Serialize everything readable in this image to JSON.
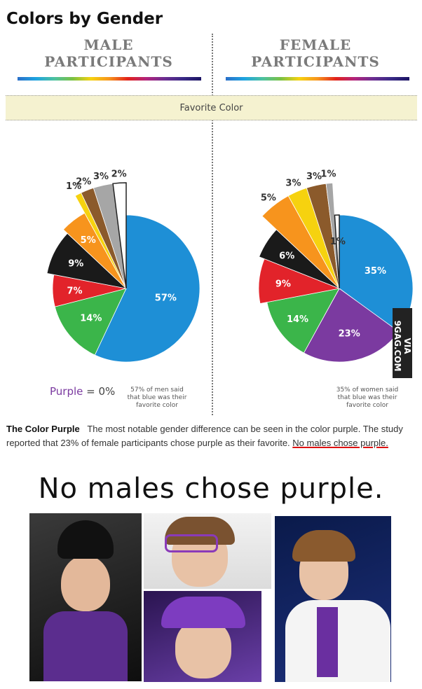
{
  "title": "Colors by Gender",
  "male_heading": [
    "MALE",
    "PARTICIPANTS"
  ],
  "female_heading": [
    "FEMALE",
    "PARTICIPANTS"
  ],
  "favorite_color_label": "Favorite Color",
  "purple_zero": {
    "word": "Purple",
    "rest": " = 0%"
  },
  "male_note": [
    "57% of men said",
    "that blue was their",
    "favorite color"
  ],
  "female_note": [
    "35% of women said",
    "that blue was their",
    "favorite color"
  ],
  "article": {
    "heading": "The Color Purple",
    "body": "The most notable gender difference can be seen in the color purple. The study reported that 23% of female participants chose purple as their favorite.",
    "underlined": "No males chose purple."
  },
  "big_line": "No males chose purple.",
  "watermark": "VIA 9GAG.COM",
  "colors": {
    "blue": "#1e8fd6",
    "green": "#3bb54a",
    "red": "#e2232a",
    "black": "#1a1a1a",
    "orange": "#f7941d",
    "yellow": "#f6d20f",
    "brown": "#8b5a2b",
    "gray": "#a6a6a6",
    "white": "#ffffff",
    "purple": "#7b3aa0"
  },
  "chart_data": [
    {
      "type": "pie",
      "title": "MALE PARTICIPANTS",
      "subtitle": "Favorite Color",
      "slices": [
        {
          "color": "blue",
          "value": 57,
          "label": "57%"
        },
        {
          "color": "green",
          "value": 14,
          "label": "14%"
        },
        {
          "color": "red",
          "value": 7,
          "label": "7%"
        },
        {
          "color": "black",
          "value": 9,
          "label": "9%"
        },
        {
          "color": "orange",
          "value": 5,
          "label": "5%"
        },
        {
          "color": "yellow",
          "value": 1,
          "label": "1%"
        },
        {
          "color": "brown",
          "value": 2,
          "label": "2%"
        },
        {
          "color": "gray",
          "value": 3,
          "label": "3%"
        },
        {
          "color": "white",
          "value": 2,
          "label": "2%"
        },
        {
          "color": "purple",
          "value": 0,
          "label": "0%"
        }
      ]
    },
    {
      "type": "pie",
      "title": "FEMALE PARTICIPANTS",
      "subtitle": "Favorite Color",
      "slices": [
        {
          "color": "blue",
          "value": 35,
          "label": "35%"
        },
        {
          "color": "purple",
          "value": 23,
          "label": "23%"
        },
        {
          "color": "green",
          "value": 14,
          "label": "14%"
        },
        {
          "color": "red",
          "value": 9,
          "label": "9%"
        },
        {
          "color": "black",
          "value": 6,
          "label": "6%"
        },
        {
          "color": "orange",
          "value": 5,
          "label": "5%"
        },
        {
          "color": "yellow",
          "value": 3,
          "label": "3%"
        },
        {
          "color": "brown",
          "value": 3,
          "label": "3%"
        },
        {
          "color": "gray",
          "value": 1,
          "label": "1%"
        },
        {
          "color": "white",
          "value": 1,
          "label": "1%"
        }
      ]
    }
  ]
}
